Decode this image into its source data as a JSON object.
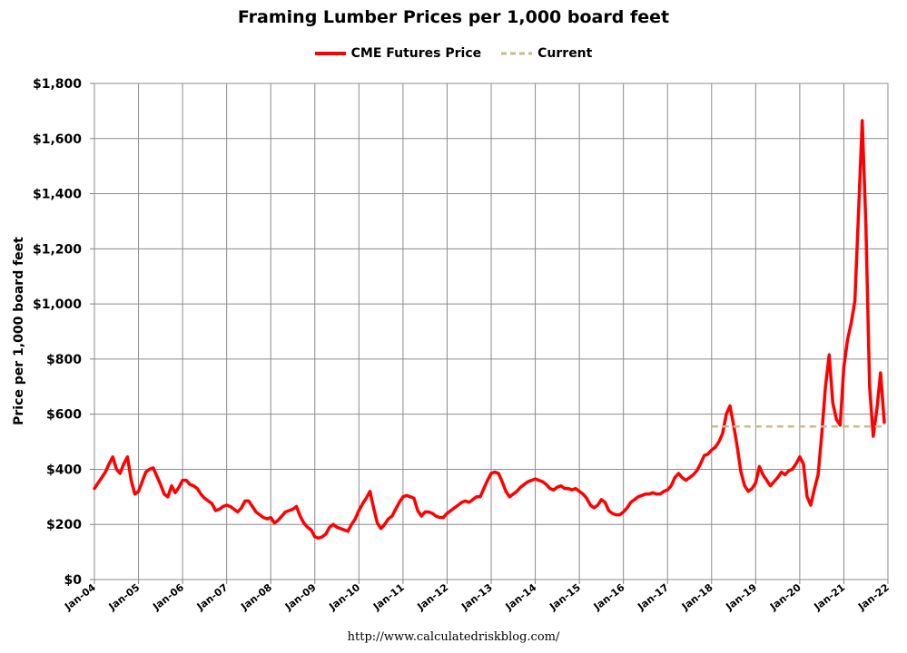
{
  "chart_data": {
    "type": "line",
    "title": "Framing Lumber Prices per 1,000 board feet",
    "xlabel": "",
    "ylabel": "Price per 1,000 board feet",
    "ylim": [
      0,
      1800
    ],
    "xlim": [
      "2004-01",
      "2022-01"
    ],
    "grid": true,
    "legend_position": "top",
    "y_ticks": [
      0,
      200,
      400,
      600,
      800,
      1000,
      1200,
      1400,
      1600,
      1800
    ],
    "y_tick_labels": [
      "$0",
      "$200",
      "$400",
      "$600",
      "$800",
      "$1,000",
      "$1,200",
      "$1,400",
      "$1,600",
      "$1,800"
    ],
    "x_tick_labels": [
      "Jan-04",
      "Jan-05",
      "Jan-06",
      "Jan-07",
      "Jan-08",
      "Jan-09",
      "Jan-10",
      "Jan-11",
      "Jan-12",
      "Jan-13",
      "Jan-14",
      "Jan-15",
      "Jan-16",
      "Jan-17",
      "Jan-18",
      "Jan-19",
      "Jan-20",
      "Jan-21",
      "Jan-22"
    ],
    "series": [
      {
        "name": "CME Futures Price",
        "color": "#ff0000",
        "style": "solid",
        "points": [
          [
            "2004-01",
            330
          ],
          [
            "2004-02",
            350
          ],
          [
            "2004-03",
            370
          ],
          [
            "2004-04",
            390
          ],
          [
            "2004-05",
            420
          ],
          [
            "2004-06",
            445
          ],
          [
            "2004-07",
            400
          ],
          [
            "2004-08",
            385
          ],
          [
            "2004-09",
            420
          ],
          [
            "2004-10",
            445
          ],
          [
            "2004-11",
            360
          ],
          [
            "2004-12",
            310
          ],
          [
            "2005-01",
            320
          ],
          [
            "2005-02",
            355
          ],
          [
            "2005-03",
            390
          ],
          [
            "2005-04",
            400
          ],
          [
            "2005-05",
            405
          ],
          [
            "2005-06",
            375
          ],
          [
            "2005-07",
            345
          ],
          [
            "2005-08",
            310
          ],
          [
            "2005-09",
            300
          ],
          [
            "2005-10",
            340
          ],
          [
            "2005-11",
            315
          ],
          [
            "2005-12",
            335
          ],
          [
            "2006-01",
            360
          ],
          [
            "2006-02",
            360
          ],
          [
            "2006-03",
            345
          ],
          [
            "2006-04",
            340
          ],
          [
            "2006-05",
            330
          ],
          [
            "2006-06",
            310
          ],
          [
            "2006-07",
            295
          ],
          [
            "2006-08",
            285
          ],
          [
            "2006-09",
            275
          ],
          [
            "2006-10",
            250
          ],
          [
            "2006-11",
            255
          ],
          [
            "2006-12",
            265
          ],
          [
            "2007-01",
            270
          ],
          [
            "2007-02",
            265
          ],
          [
            "2007-03",
            255
          ],
          [
            "2007-04",
            245
          ],
          [
            "2007-05",
            260
          ],
          [
            "2007-06",
            285
          ],
          [
            "2007-07",
            285
          ],
          [
            "2007-08",
            265
          ],
          [
            "2007-09",
            245
          ],
          [
            "2007-10",
            235
          ],
          [
            "2007-11",
            225
          ],
          [
            "2007-12",
            220
          ],
          [
            "2008-01",
            225
          ],
          [
            "2008-02",
            205
          ],
          [
            "2008-03",
            215
          ],
          [
            "2008-04",
            230
          ],
          [
            "2008-05",
            245
          ],
          [
            "2008-06",
            250
          ],
          [
            "2008-07",
            255
          ],
          [
            "2008-08",
            265
          ],
          [
            "2008-09",
            230
          ],
          [
            "2008-10",
            205
          ],
          [
            "2008-11",
            190
          ],
          [
            "2008-12",
            180
          ],
          [
            "2009-01",
            155
          ],
          [
            "2009-02",
            150
          ],
          [
            "2009-03",
            155
          ],
          [
            "2009-04",
            165
          ],
          [
            "2009-05",
            190
          ],
          [
            "2009-06",
            200
          ],
          [
            "2009-07",
            190
          ],
          [
            "2009-08",
            185
          ],
          [
            "2009-09",
            180
          ],
          [
            "2009-10",
            175
          ],
          [
            "2009-11",
            200
          ],
          [
            "2009-12",
            220
          ],
          [
            "2010-01",
            250
          ],
          [
            "2010-02",
            275
          ],
          [
            "2010-03",
            295
          ],
          [
            "2010-04",
            320
          ],
          [
            "2010-05",
            260
          ],
          [
            "2010-06",
            205
          ],
          [
            "2010-07",
            185
          ],
          [
            "2010-08",
            200
          ],
          [
            "2010-09",
            220
          ],
          [
            "2010-10",
            230
          ],
          [
            "2010-11",
            255
          ],
          [
            "2010-12",
            280
          ],
          [
            "2011-01",
            300
          ],
          [
            "2011-02",
            305
          ],
          [
            "2011-03",
            300
          ],
          [
            "2011-04",
            295
          ],
          [
            "2011-05",
            250
          ],
          [
            "2011-06",
            230
          ],
          [
            "2011-07",
            245
          ],
          [
            "2011-08",
            245
          ],
          [
            "2011-09",
            240
          ],
          [
            "2011-10",
            230
          ],
          [
            "2011-11",
            225
          ],
          [
            "2011-12",
            225
          ],
          [
            "2012-01",
            240
          ],
          [
            "2012-02",
            250
          ],
          [
            "2012-03",
            260
          ],
          [
            "2012-04",
            270
          ],
          [
            "2012-05",
            280
          ],
          [
            "2012-06",
            285
          ],
          [
            "2012-07",
            280
          ],
          [
            "2012-08",
            290
          ],
          [
            "2012-09",
            300
          ],
          [
            "2012-10",
            300
          ],
          [
            "2012-11",
            330
          ],
          [
            "2012-12",
            360
          ],
          [
            "2013-01",
            385
          ],
          [
            "2013-02",
            390
          ],
          [
            "2013-03",
            385
          ],
          [
            "2013-04",
            355
          ],
          [
            "2013-05",
            320
          ],
          [
            "2013-06",
            300
          ],
          [
            "2013-07",
            310
          ],
          [
            "2013-08",
            320
          ],
          [
            "2013-09",
            335
          ],
          [
            "2013-10",
            345
          ],
          [
            "2013-11",
            355
          ],
          [
            "2013-12",
            360
          ],
          [
            "2014-01",
            365
          ],
          [
            "2014-02",
            360
          ],
          [
            "2014-03",
            355
          ],
          [
            "2014-04",
            345
          ],
          [
            "2014-05",
            330
          ],
          [
            "2014-06",
            325
          ],
          [
            "2014-07",
            335
          ],
          [
            "2014-08",
            340
          ],
          [
            "2014-09",
            330
          ],
          [
            "2014-10",
            330
          ],
          [
            "2014-11",
            325
          ],
          [
            "2014-12",
            330
          ],
          [
            "2015-01",
            320
          ],
          [
            "2015-02",
            310
          ],
          [
            "2015-03",
            295
          ],
          [
            "2015-04",
            270
          ],
          [
            "2015-05",
            260
          ],
          [
            "2015-06",
            270
          ],
          [
            "2015-07",
            290
          ],
          [
            "2015-08",
            280
          ],
          [
            "2015-09",
            250
          ],
          [
            "2015-10",
            240
          ],
          [
            "2015-11",
            235
          ],
          [
            "2015-12",
            235
          ],
          [
            "2016-01",
            245
          ],
          [
            "2016-02",
            260
          ],
          [
            "2016-03",
            280
          ],
          [
            "2016-04",
            290
          ],
          [
            "2016-05",
            300
          ],
          [
            "2016-06",
            305
          ],
          [
            "2016-07",
            310
          ],
          [
            "2016-08",
            310
          ],
          [
            "2016-09",
            315
          ],
          [
            "2016-10",
            310
          ],
          [
            "2016-11",
            310
          ],
          [
            "2016-12",
            320
          ],
          [
            "2017-01",
            325
          ],
          [
            "2017-02",
            340
          ],
          [
            "2017-03",
            370
          ],
          [
            "2017-04",
            385
          ],
          [
            "2017-05",
            370
          ],
          [
            "2017-06",
            360
          ],
          [
            "2017-07",
            370
          ],
          [
            "2017-08",
            380
          ],
          [
            "2017-09",
            395
          ],
          [
            "2017-10",
            420
          ],
          [
            "2017-11",
            450
          ],
          [
            "2017-12",
            455
          ],
          [
            "2018-01",
            470
          ],
          [
            "2018-02",
            480
          ],
          [
            "2018-03",
            500
          ],
          [
            "2018-04",
            530
          ],
          [
            "2018-05",
            600
          ],
          [
            "2018-06",
            630
          ],
          [
            "2018-07",
            560
          ],
          [
            "2018-08",
            480
          ],
          [
            "2018-09",
            390
          ],
          [
            "2018-10",
            340
          ],
          [
            "2018-11",
            320
          ],
          [
            "2018-12",
            330
          ],
          [
            "2019-01",
            350
          ],
          [
            "2019-02",
            410
          ],
          [
            "2019-03",
            380
          ],
          [
            "2019-04",
            360
          ],
          [
            "2019-05",
            340
          ],
          [
            "2019-06",
            355
          ],
          [
            "2019-07",
            370
          ],
          [
            "2019-08",
            390
          ],
          [
            "2019-09",
            380
          ],
          [
            "2019-10",
            395
          ],
          [
            "2019-11",
            400
          ],
          [
            "2019-12",
            420
          ],
          [
            "2020-01",
            445
          ],
          [
            "2020-02",
            420
          ],
          [
            "2020-03",
            300
          ],
          [
            "2020-04",
            270
          ],
          [
            "2020-05",
            330
          ],
          [
            "2020-06",
            380
          ],
          [
            "2020-07",
            530
          ],
          [
            "2020-08",
            700
          ],
          [
            "2020-09",
            815
          ],
          [
            "2020-10",
            640
          ],
          [
            "2020-11",
            580
          ],
          [
            "2020-12",
            560
          ],
          [
            "2021-01",
            770
          ],
          [
            "2021-02",
            870
          ],
          [
            "2021-03",
            930
          ],
          [
            "2021-04",
            1010
          ],
          [
            "2021-05",
            1330
          ],
          [
            "2021-06",
            1665
          ],
          [
            "2021-07",
            1290
          ],
          [
            "2021-08",
            700
          ],
          [
            "2021-09",
            520
          ],
          [
            "2021-10",
            620
          ],
          [
            "2021-11",
            750
          ],
          [
            "2021-12",
            570
          ]
        ]
      },
      {
        "name": "Current",
        "color": "#c9b98e",
        "style": "dashed",
        "points": [
          [
            "2018-01",
            555
          ],
          [
            "2021-12",
            555
          ]
        ]
      }
    ]
  },
  "source_note": "http://www.calculatedriskblog.com/"
}
